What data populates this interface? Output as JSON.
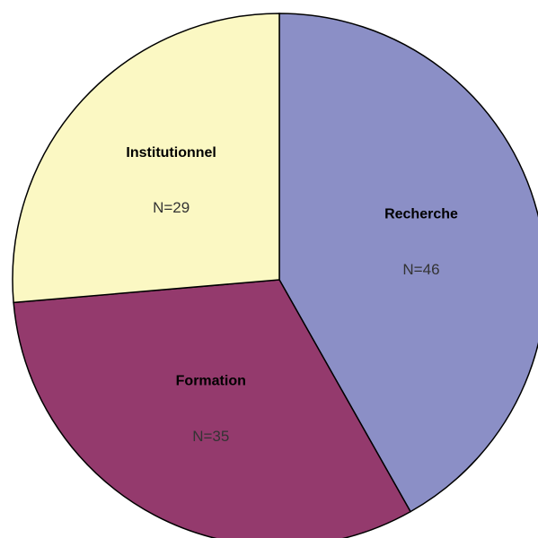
{
  "chart_data": {
    "type": "pie",
    "categories": [
      "Recherche",
      "Formation",
      "Institutionnel"
    ],
    "values": [
      46,
      35,
      29
    ],
    "value_labels": [
      "N=46",
      "N=35",
      "N=29"
    ],
    "colors": [
      "#8b8fc6",
      "#943a6d",
      "#fbf8c3"
    ]
  }
}
